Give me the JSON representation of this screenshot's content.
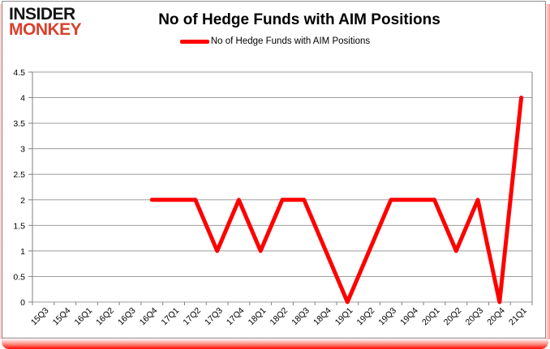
{
  "header": {
    "logo_line1": "INSIDER",
    "logo_line2": "MONKEY",
    "title": "No of Hedge Funds with AIM Positions"
  },
  "legend": {
    "label": "No of Hedge Funds with AIM Positions"
  },
  "chart_data": {
    "type": "line",
    "title": "No of Hedge Funds with AIM Positions",
    "series_name": "No of Hedge Funds with AIM Positions",
    "categories": [
      "15Q3",
      "15Q4",
      "16Q1",
      "16Q2",
      "16Q3",
      "16Q4",
      "17Q1",
      "17Q2",
      "17Q3",
      "17Q4",
      "18Q1",
      "18Q2",
      "18Q3",
      "18Q4",
      "19Q1",
      "19Q2",
      "19Q3",
      "19Q4",
      "20Q1",
      "20Q2",
      "20Q3",
      "20Q4",
      "21Q1"
    ],
    "values": [
      null,
      null,
      null,
      null,
      null,
      2,
      2,
      2,
      1,
      2,
      1,
      2,
      2,
      1,
      0,
      1,
      2,
      2,
      2,
      1,
      2,
      0,
      4
    ],
    "ylim": [
      0,
      4.5
    ],
    "yticks": [
      0,
      0.5,
      1,
      1.5,
      2,
      2.5,
      3,
      3.5,
      4,
      4.5
    ],
    "grid": true,
    "legend_position": "top-center",
    "line_color": "#ff0000",
    "grid_color": "#9d9d9d",
    "axis_color": "#808080",
    "label_color": "#000000"
  },
  "colors": {
    "logo_red": "#d8402c",
    "frame_border": "#8f8f8f",
    "glow_red": "#ff0000",
    "background": "#ffffff"
  }
}
